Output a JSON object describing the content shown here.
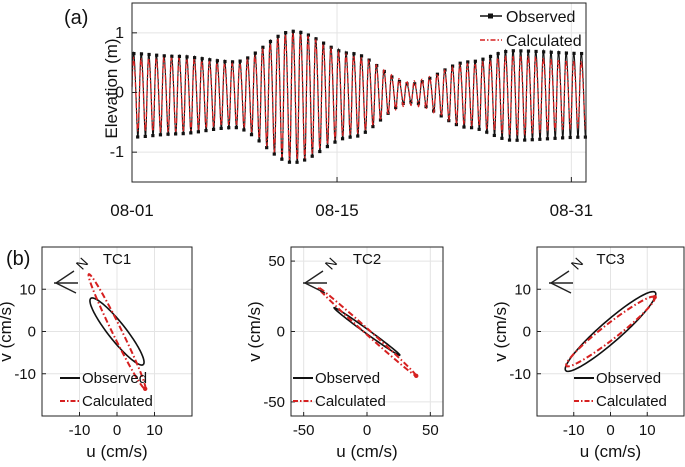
{
  "panel_labels": {
    "a": "(a)",
    "b": "(b)"
  },
  "colors": {
    "observed": "#111111",
    "calculated": "#d62020",
    "grid": "#e4e4e4",
    "axis": "#222222"
  },
  "chart_data": [
    {
      "id": "a",
      "type": "line",
      "title": "",
      "xlabel": "",
      "ylabel": "Elevation (m)",
      "xlim": [
        0,
        31
      ],
      "ylim": [
        -1.5,
        1.5
      ],
      "yticks": [
        -1,
        0,
        1
      ],
      "ytick_labels": [
        "-1",
        "0",
        "1"
      ],
      "xticks": [
        0,
        14,
        30
      ],
      "xtick_labels": [
        "08-01",
        "08-15",
        "08-31"
      ],
      "legend": [
        "Observed",
        "Calculated"
      ],
      "legend_position": "top-right",
      "series": [
        {
          "name": "Observed",
          "style": "solid-with-markers",
          "cycles_per_day": 1.93,
          "envelope_days": [
            0,
            3,
            7,
            11,
            15,
            19,
            23,
            26,
            31
          ],
          "envelope_amplitude": [
            0.7,
            0.65,
            0.55,
            1.1,
            0.7,
            0.15,
            0.55,
            0.75,
            0.7
          ]
        },
        {
          "name": "Calculated",
          "style": "dash-dot",
          "cycles_per_day": 1.93,
          "envelope_days": [
            0,
            3,
            7,
            11,
            15,
            19,
            23,
            26,
            31
          ],
          "envelope_amplitude": [
            0.6,
            0.6,
            0.5,
            1.05,
            0.65,
            0.2,
            0.5,
            0.65,
            0.55
          ]
        }
      ]
    },
    {
      "id": "b1",
      "type": "ellipse",
      "title": "TC1",
      "xlabel": "u (cm/s)",
      "ylabel": "v (cm/s)",
      "xlim": [
        -20,
        20
      ],
      "ylim": [
        -20,
        20
      ],
      "xticks": [
        -10,
        0,
        10
      ],
      "xtick_labels": [
        "-10",
        "0",
        "10"
      ],
      "yticks": [
        -10,
        0,
        10
      ],
      "ytick_labels": [
        "-10",
        "0",
        "10"
      ],
      "north_label": "N",
      "legend": [
        "Observed",
        "Calculated"
      ],
      "legend_position": "bottom-left",
      "series": [
        {
          "name": "Observed",
          "major": 10.5,
          "minor": 2.2,
          "angle_deg": -48
        },
        {
          "name": "Calculated",
          "major": 15.5,
          "minor": 1.2,
          "angle_deg": -61
        }
      ]
    },
    {
      "id": "b2",
      "type": "ellipse",
      "title": "TC2",
      "xlabel": "u (cm/s)",
      "ylabel": "v (cm/s)",
      "xlim": [
        -60,
        60
      ],
      "ylim": [
        -60,
        60
      ],
      "xticks": [
        -50,
        0,
        50
      ],
      "xtick_labels": [
        "-50",
        "0",
        "50"
      ],
      "yticks": [
        -50,
        0,
        50
      ],
      "ytick_labels": [
        "-50",
        "0",
        "50"
      ],
      "north_label": "N",
      "legend": [
        "Observed",
        "Calculated"
      ],
      "legend_position": "bottom-left",
      "series": [
        {
          "name": "Observed",
          "major": 31.0,
          "minor": 1.5,
          "angle_deg": -33
        },
        {
          "name": "Calculated",
          "major": 50.0,
          "minor": 1.8,
          "angle_deg": -39
        }
      ]
    },
    {
      "id": "b3",
      "type": "ellipse",
      "title": "TC3",
      "xlabel": "u (cm/s)",
      "ylabel": "v (cm/s)",
      "xlim": [
        -20,
        20
      ],
      "ylim": [
        -20,
        20
      ],
      "xticks": [
        -10,
        0,
        10
      ],
      "xtick_labels": [
        "-10",
        "0",
        "10"
      ],
      "yticks": [
        -10,
        0,
        10
      ],
      "ytick_labels": [
        "-10",
        "0",
        "10"
      ],
      "north_label": "N",
      "legend": [
        "Observed",
        "Calculated"
      ],
      "legend_position": "bottom-right",
      "series": [
        {
          "name": "Observed",
          "major": 15.3,
          "minor": 2.6,
          "angle_deg": 37
        },
        {
          "name": "Calculated",
          "major": 14.5,
          "minor": 1.9,
          "angle_deg": 34
        }
      ]
    }
  ]
}
